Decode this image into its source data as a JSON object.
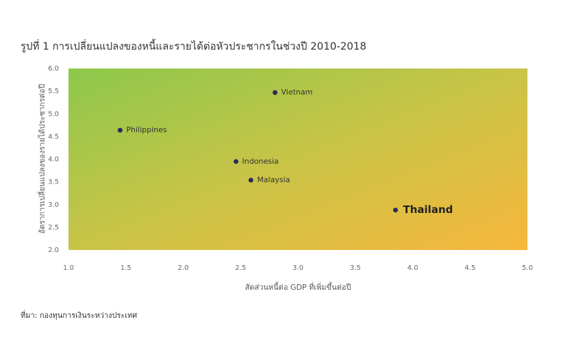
{
  "chart_data": {
    "type": "scatter",
    "title": "รูปที่ 1 การเปลี่ยนแปลงของหนี้และรายได้ต่อหัวประชากรในช่วงปี 2010-2018",
    "x_label": "สัดส่วนหนี้ต่อ GDP ที่เพิ่มขึ้นต่อปี",
    "y_label": "อัตราการเปลี่ยนแปลงของรายได้ประชากรต่อปี",
    "source": "ที่มา: กองทุนการเงินระหว่างประเทศ",
    "labels": [
      "Vietnam",
      "Philippines",
      "Indonesia",
      "Malaysia",
      "Thailand"
    ],
    "x": [
      2.8,
      1.45,
      2.46,
      2.59,
      3.85
    ],
    "values": [
      5.47,
      4.64,
      3.95,
      3.54,
      2.88
    ],
    "color": "#2e2a5a",
    "highlight": "Thailand",
    "xlim": [
      1.0,
      5.0
    ],
    "xticks": [
      {
        "value": 1,
        "label": "1.0"
      },
      1.5,
      {
        "value": 2,
        "label": "2.0"
      },
      2.5,
      {
        "value": 3,
        "label": "3.0"
      },
      3.5,
      {
        "value": 4,
        "label": "4.0"
      },
      4.5,
      {
        "value": 5,
        "label": "5.0"
      }
    ],
    "ylim": [
      2.0,
      6.0
    ],
    "yticks": [
      {
        "value": 2,
        "label": "2.0"
      },
      2.5,
      {
        "value": 3,
        "label": "3.0"
      },
      3.5,
      {
        "value": 4,
        "label": "4.0"
      },
      4.5,
      {
        "value": 5,
        "label": "5.0"
      },
      5.5,
      {
        "value": 6,
        "label": "6.0"
      }
    ]
  }
}
